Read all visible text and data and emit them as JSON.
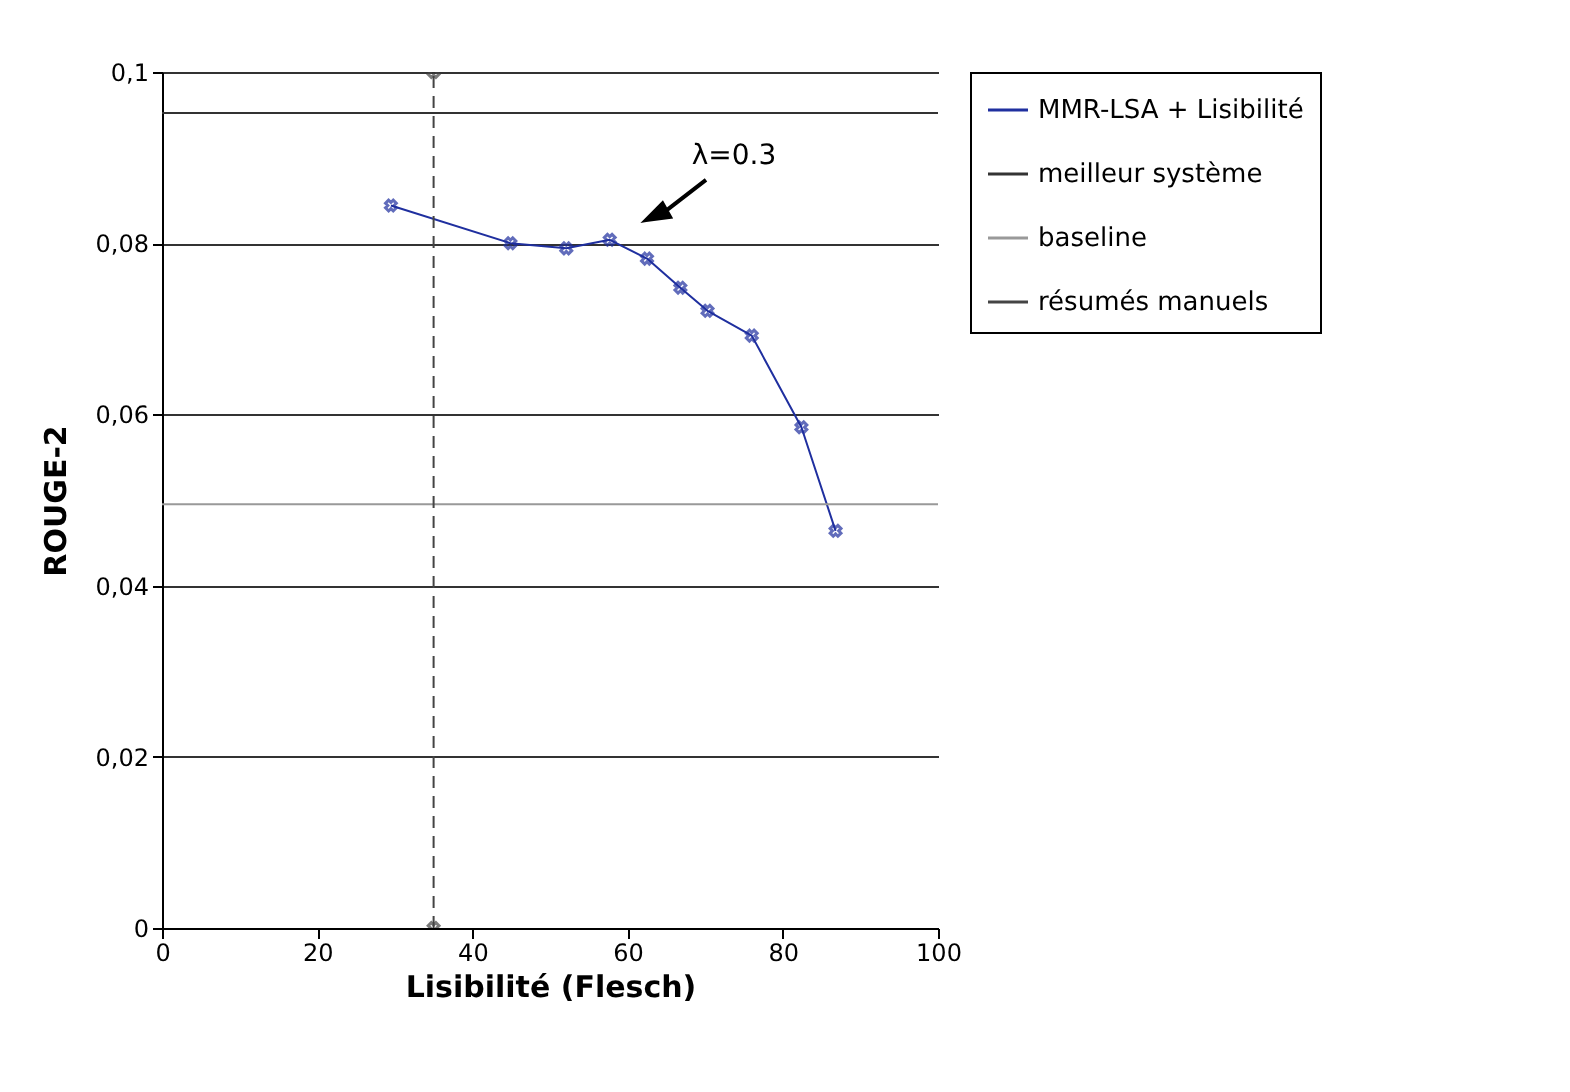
{
  "chart_data": {
    "type": "line",
    "xlabel": "Lisibilité (Flesch)",
    "ylabel": "ROUGE-2",
    "xlim": [
      0,
      100
    ],
    "xticks": [
      0,
      20,
      40,
      60,
      80,
      100
    ],
    "ylim": [
      0,
      0.1
    ],
    "yticks": [
      {
        "value": 0,
        "label": "0"
      },
      {
        "value": 0.02,
        "label": "0,02"
      },
      {
        "value": 0.04,
        "label": "0,04"
      },
      {
        "value": 0.06,
        "label": "0,06"
      },
      {
        "value": 0.08,
        "label": "0,08"
      },
      {
        "value": 0.1,
        "label": "0,1"
      }
    ],
    "grid": "y",
    "legend": "right",
    "marker": "cross",
    "line_style": "solid",
    "series": [
      {
        "name": "MMR-LSA + Lisibilité",
        "color": "#1f2f9f",
        "x": [
          29.5,
          44.9,
          52.1,
          57.7,
          62.5,
          66.8,
          70.3,
          76.0,
          82.4,
          86.8
        ],
        "values": [
          0.0844,
          0.08,
          0.0794,
          0.0804,
          0.0782,
          0.0748,
          0.0721,
          0.0692,
          0.0585,
          0.0464
        ]
      },
      {
        "name": "meilleur système",
        "color": "#333333",
        "marker": "none",
        "x": [
          0,
          100
        ],
        "values": [
          0.0952,
          0.0952
        ]
      },
      {
        "name": "baseline",
        "color": "#999999",
        "marker": "none",
        "x": [
          0,
          100
        ],
        "values": [
          0.0495,
          0.0495
        ]
      },
      {
        "name": "résumés manuels",
        "color": "#444444",
        "line_style": "dashed",
        "x": [
          35,
          35
        ],
        "values": [
          0,
          0.1
        ]
      }
    ],
    "annotations": [
      "λ=0.3"
    ]
  }
}
